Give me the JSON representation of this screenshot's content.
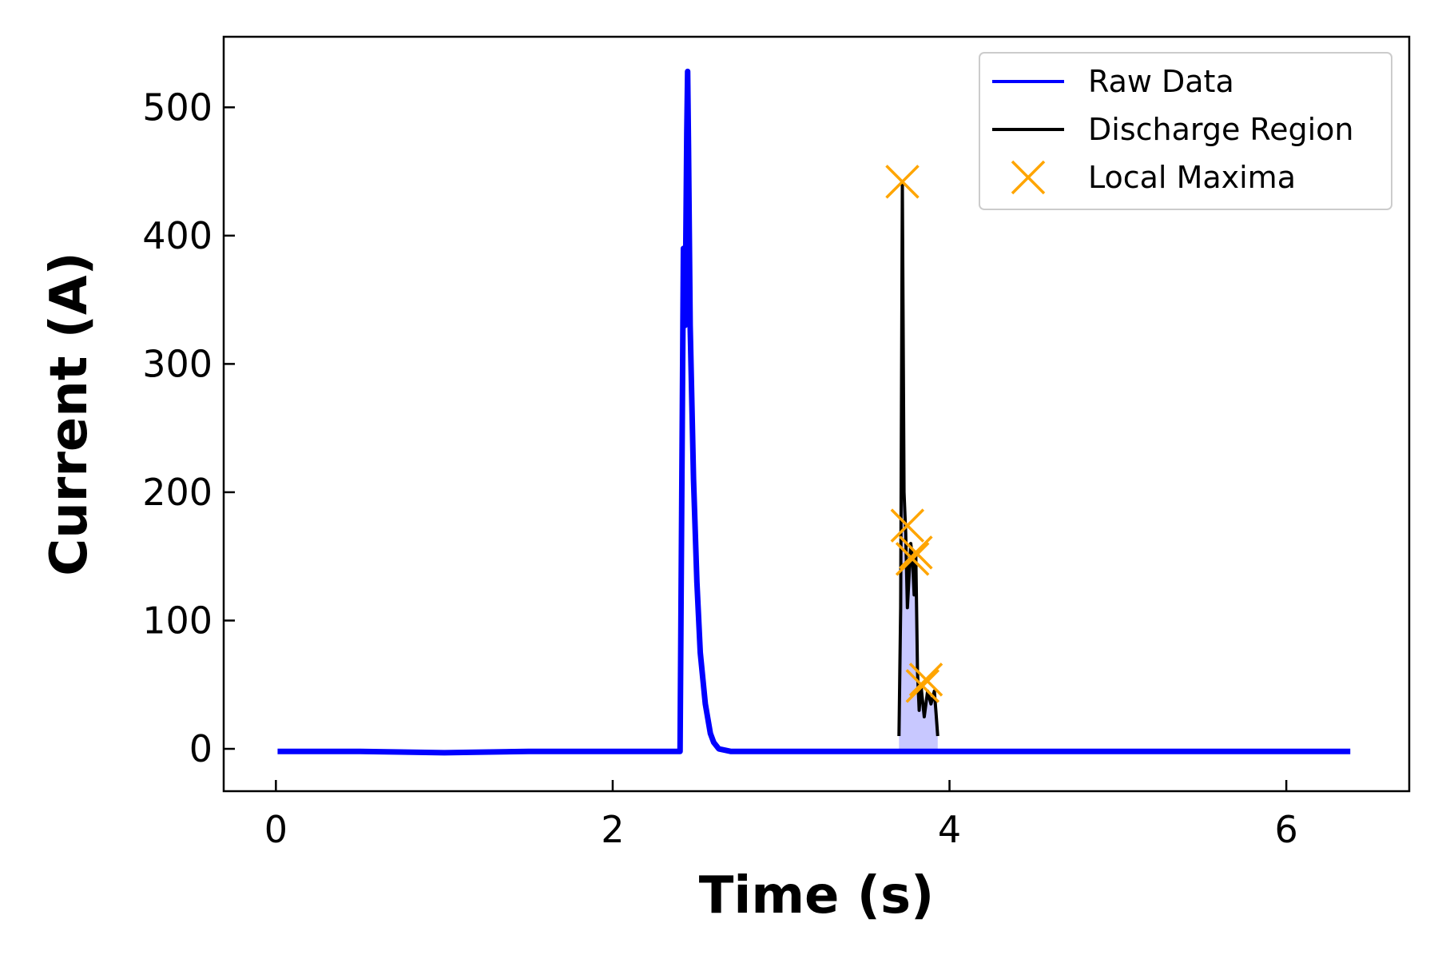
{
  "chart_data": {
    "type": "line",
    "xlabel": "Time (s)",
    "ylabel": "Current (A)",
    "xlim": [
      -0.31,
      6.73
    ],
    "ylim": [
      -33,
      555
    ],
    "xticks": [
      0,
      2,
      4,
      6
    ],
    "yticks": [
      0,
      100,
      200,
      300,
      400,
      500
    ],
    "grid": false,
    "legend_position": "top-right",
    "colors": {
      "raw": "#0000ff",
      "discharge": "#000000",
      "maxima": "#ffa500",
      "fill": "#c8c8ff"
    },
    "series": [
      {
        "name": "Raw Data",
        "style": "line",
        "x": [
          0.01,
          0.5,
          1.0,
          1.5,
          2.0,
          2.4,
          2.42,
          2.43,
          2.44,
          2.445,
          2.45,
          2.46,
          2.48,
          2.5,
          2.52,
          2.55,
          2.58,
          2.6,
          2.63,
          2.7,
          3.0,
          3.5,
          3.7,
          3.93,
          4.0,
          4.5,
          5.0,
          5.5,
          6.0,
          6.38
        ],
        "y": [
          -2,
          -2,
          -3,
          -2,
          -2,
          -2,
          390,
          330,
          480,
          528,
          470,
          330,
          210,
          130,
          75,
          35,
          12,
          5,
          0,
          -2,
          -2,
          -2,
          -2,
          -2,
          -2,
          -2,
          -2,
          -2,
          -2,
          -2
        ]
      },
      {
        "name": "Discharge Region",
        "style": "line",
        "x": [
          3.7,
          3.71,
          3.72,
          3.73,
          3.74,
          3.75,
          3.77,
          3.78,
          3.79,
          3.8,
          3.81,
          3.82,
          3.83,
          3.85,
          3.87,
          3.89,
          3.91,
          3.92,
          3.93
        ],
        "y": [
          10,
          110,
          440,
          200,
          168,
          110,
          160,
          148,
          120,
          150,
          60,
          30,
          50,
          25,
          45,
          35,
          45,
          28,
          10
        ]
      },
      {
        "name": "Local Maxima",
        "style": "markers",
        "x": [
          3.72,
          3.75,
          3.78,
          3.8,
          3.84,
          3.86
        ],
        "y": [
          442,
          174,
          148,
          153,
          49,
          54
        ]
      }
    ]
  }
}
